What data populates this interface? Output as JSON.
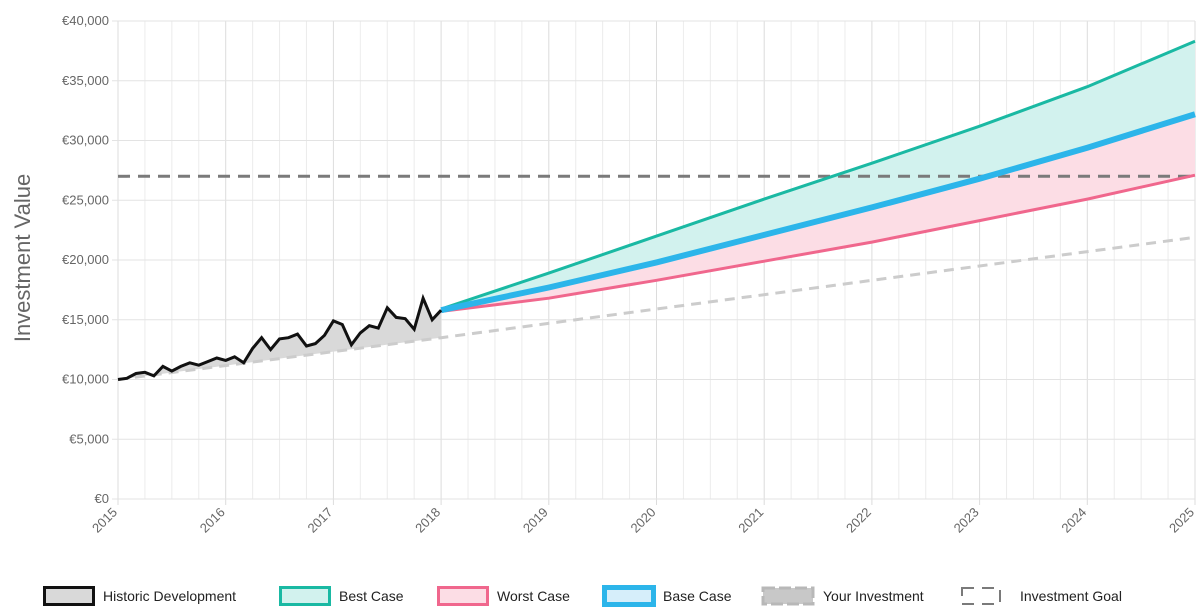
{
  "chart_data": {
    "type": "line",
    "ylabel": "Investment Value",
    "xlabel": "",
    "title": "",
    "ylim": [
      0,
      40000
    ],
    "xlim": [
      2015,
      2025
    ],
    "y_ticks": [
      "€0",
      "€5,000",
      "€10,000",
      "€15,000",
      "€20,000",
      "€25,000",
      "€30,000",
      "€35,000",
      "€40,000"
    ],
    "y_tick_values": [
      0,
      5000,
      10000,
      15000,
      20000,
      25000,
      30000,
      35000,
      40000
    ],
    "x_ticks": [
      "2015",
      "2016",
      "2017",
      "2018",
      "2019",
      "2020",
      "2021",
      "2022",
      "2023",
      "2024",
      "2025"
    ],
    "x_tick_values": [
      2015,
      2016,
      2017,
      2018,
      2019,
      2020,
      2021,
      2022,
      2023,
      2024,
      2025
    ],
    "grid": true,
    "legend_position": "bottom",
    "series": [
      {
        "name": "Historic Development",
        "color": "#111111",
        "fill": "#d9d9d9",
        "x": [
          2015.0,
          2015.083,
          2015.167,
          2015.25,
          2015.333,
          2015.417,
          2015.5,
          2015.583,
          2015.667,
          2015.75,
          2015.833,
          2015.917,
          2016.0,
          2016.083,
          2016.167,
          2016.25,
          2016.333,
          2016.417,
          2016.5,
          2016.583,
          2016.667,
          2016.75,
          2016.833,
          2016.917,
          2017.0,
          2017.083,
          2017.167,
          2017.25,
          2017.333,
          2017.417,
          2017.5,
          2017.583,
          2017.667,
          2017.75,
          2017.833,
          2017.917,
          2018.0
        ],
        "values": [
          10000,
          10100,
          10500,
          10600,
          10300,
          11100,
          10700,
          11100,
          11400,
          11200,
          11500,
          11800,
          11600,
          11900,
          11400,
          12600,
          13500,
          12500,
          13400,
          13500,
          13800,
          12800,
          13000,
          13700,
          14900,
          14600,
          12900,
          13900,
          14500,
          14300,
          16000,
          15200,
          15100,
          14200,
          16800,
          15000,
          15800
        ]
      },
      {
        "name": "Best Case",
        "color": "#1ab9a3",
        "fill": "#d2f2ee",
        "x": [
          2018,
          2019,
          2020,
          2021,
          2022,
          2023,
          2024,
          2025
        ],
        "values": [
          15900,
          18900,
          22000,
          25100,
          28100,
          31200,
          34500,
          38300
        ]
      },
      {
        "name": "Worst Case",
        "color": "#f0678d",
        "fill": "#fcdde5",
        "x": [
          2018,
          2019,
          2020,
          2021,
          2022,
          2023,
          2024,
          2025
        ],
        "values": [
          15700,
          16800,
          18300,
          19900,
          21500,
          23300,
          25100,
          27100
        ]
      },
      {
        "name": "Base Case",
        "color": "#2cb5ea",
        "fill": "#d6eefa",
        "x": [
          2018,
          2019,
          2020,
          2021,
          2022,
          2023,
          2024,
          2025
        ],
        "values": [
          15800,
          17700,
          19800,
          22100,
          24400,
          26800,
          29400,
          32200
        ]
      },
      {
        "name": "Your Investment",
        "color": "#cccccc",
        "fill": "#c8c8c8",
        "dashed": true,
        "x": [
          2015,
          2018,
          2025
        ],
        "values": [
          10000,
          13500,
          21900
        ]
      },
      {
        "name": "Investment Goal",
        "color": "#7a7a7a",
        "dashed": true,
        "x": [
          2015,
          2025
        ],
        "values": [
          27000,
          27000
        ]
      }
    ]
  }
}
